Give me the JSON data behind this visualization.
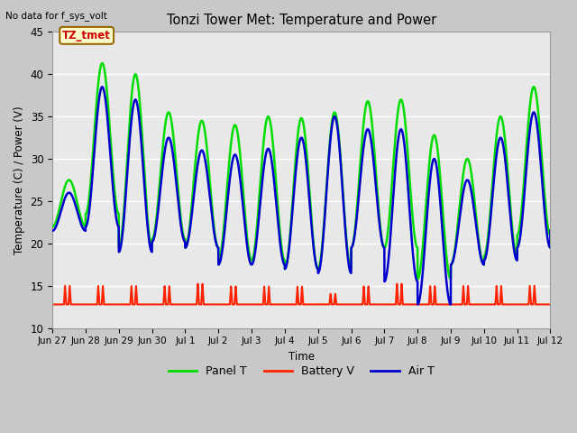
{
  "title": "Tonzi Tower Met: Temperature and Power",
  "top_left_text": "No data for f_sys_volt",
  "ylabel": "Temperature (C) / Power (V)",
  "xlabel": "Time",
  "ylim": [
    10,
    45
  ],
  "yticks": [
    10,
    15,
    20,
    25,
    30,
    35,
    40,
    45
  ],
  "fig_bg_color": "#c8c8c8",
  "plot_bg_color": "#e8e8e8",
  "grid_color": "#ffffff",
  "annotation_text": "TZ_tmet",
  "annotation_color": "#cc0000",
  "annotation_bg": "#ffffcc",
  "annotation_border": "#996600",
  "x_tick_labels": [
    "Jun 27",
    "Jun 28",
    "Jun 29",
    "Jun 30",
    "Jul 1",
    "Jul 2",
    "Jul 3",
    "Jul 4",
    "Jul 5",
    "Jul 6",
    "Jul 7",
    "Jul 8",
    "Jul 9",
    "Jul 10",
    "Jul 11",
    "Jul 12"
  ],
  "panel_color": "#00dd00",
  "battery_color": "#ff2200",
  "air_color": "#0000cc",
  "battery_base": 12.8,
  "battery_spike_heights": [
    2.2,
    2.2,
    2.2,
    2.2,
    2.5,
    2.2,
    2.2,
    2.2,
    1.3,
    2.2,
    2.5,
    2.2,
    2.2,
    2.2,
    2.2
  ],
  "panel_peaks": [
    27.5,
    41.3,
    40.0,
    35.5,
    34.5,
    34.0,
    35.0,
    34.8,
    35.5,
    36.8,
    37.0,
    32.8,
    30.0,
    35.0,
    38.5,
    39.0
  ],
  "panel_troughs": [
    22.0,
    23.5,
    19.5,
    20.5,
    19.5,
    18.0,
    18.0,
    17.0,
    17.0,
    19.5,
    19.5,
    15.8,
    17.5,
    18.5,
    21.0,
    21.5
  ],
  "air_peaks": [
    26.0,
    38.5,
    37.0,
    32.5,
    31.0,
    30.5,
    31.2,
    32.5,
    35.0,
    33.5,
    33.5,
    30.0,
    27.5,
    32.5,
    35.5,
    36.0
  ],
  "air_troughs": [
    21.5,
    22.0,
    19.0,
    20.2,
    19.5,
    17.5,
    17.5,
    17.0,
    16.5,
    19.5,
    15.5,
    12.8,
    17.5,
    18.0,
    19.5,
    21.5
  ],
  "lw_panel": 1.8,
  "lw_battery": 1.5,
  "lw_air": 1.8
}
